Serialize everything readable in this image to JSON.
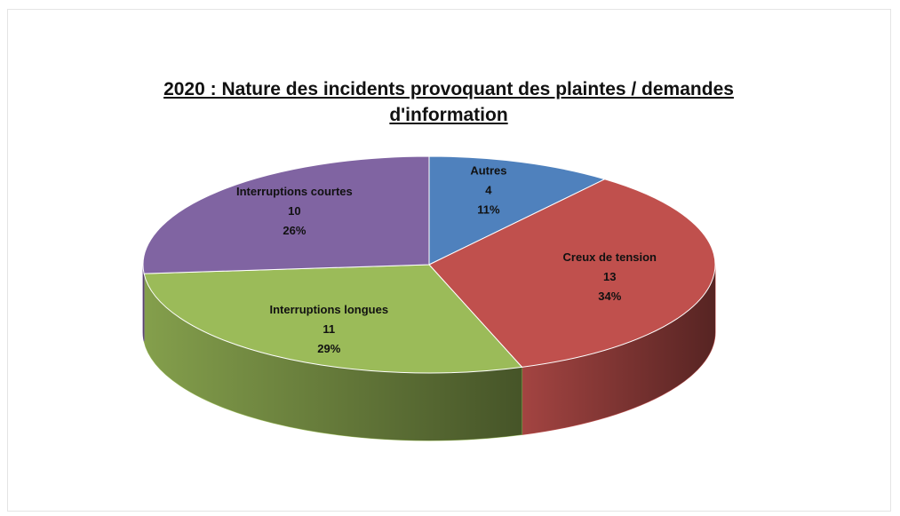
{
  "chart_data": {
    "type": "pie3d",
    "title": "2020  : Nature des incidents provoquant des plaintes / demandes d'information",
    "categories": [
      "Autres",
      "Creux de tension",
      "Interruptions longues",
      "Interruptions courtes"
    ],
    "values": [
      4,
      13,
      11,
      10
    ],
    "percentages": [
      11,
      34,
      29,
      26
    ],
    "percentage_labels": [
      "11%",
      "34%",
      "29%",
      "26%"
    ],
    "colors": [
      "#4f81bd",
      "#c0504d",
      "#9bbb59",
      "#8064a2"
    ]
  }
}
